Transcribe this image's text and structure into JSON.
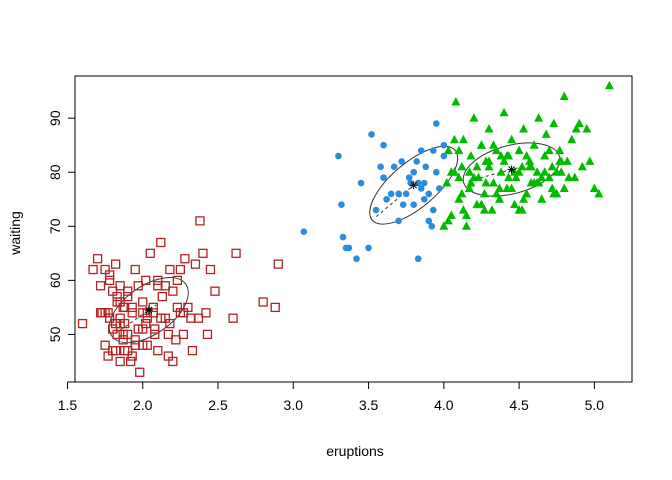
{
  "chart_data": {
    "type": "scatter",
    "xlabel": "eruptions",
    "ylabel": "waiting",
    "xlim": [
      1.55,
      5.25
    ],
    "ylim": [
      41.2,
      97.8
    ],
    "xticks": [
      1.5,
      2.0,
      2.5,
      3.0,
      3.5,
      4.0,
      4.5,
      5.0
    ],
    "xtick_labels": [
      "1.5",
      "2.0",
      "2.5",
      "3.0",
      "3.5",
      "4.0",
      "4.5",
      "5.0"
    ],
    "yticks": [
      50,
      60,
      70,
      80,
      90
    ],
    "ytick_labels": [
      "50",
      "60",
      "70",
      "80",
      "90"
    ],
    "grid": false,
    "series": [
      {
        "marker": "open-square",
        "color": "#b22222",
        "x": [
          1.6,
          1.7,
          1.72,
          1.73,
          1.75,
          1.75,
          1.77,
          1.78,
          1.78,
          1.8,
          1.8,
          1.82,
          1.82,
          1.83,
          1.83,
          1.85,
          1.85,
          1.85,
          1.87,
          1.87,
          1.88,
          1.88,
          1.9,
          1.9,
          1.92,
          1.93,
          1.95,
          1.95,
          1.97,
          1.98,
          2.0,
          2.0,
          2.02,
          2.03,
          2.03,
          2.05,
          2.07,
          2.08,
          2.1,
          2.1,
          2.12,
          2.13,
          2.15,
          2.17,
          2.18,
          2.2,
          2.2,
          2.22,
          2.23,
          2.25,
          2.27,
          2.28,
          2.3,
          2.33,
          2.35,
          2.37,
          2.38,
          2.4,
          2.42,
          2.43,
          2.45,
          2.48,
          2.6,
          2.62,
          2.8,
          2.88,
          2.9,
          1.67,
          1.72,
          1.77,
          1.8,
          1.83,
          1.85,
          1.87,
          1.9,
          1.93,
          1.97,
          2.0,
          2.03,
          2.07,
          2.12,
          2.15,
          2.18,
          2.23,
          2.27,
          2.32,
          1.75,
          1.82,
          1.88,
          1.95,
          2.02,
          2.08,
          2.17,
          2.25,
          1.78,
          1.85,
          1.9,
          1.93,
          2.0,
          2.1
        ],
        "y": [
          52,
          64,
          59,
          54,
          62,
          48,
          46,
          53,
          60,
          58,
          51,
          63,
          47,
          56,
          50,
          45,
          59,
          53,
          49,
          55,
          52,
          47,
          57,
          50,
          45,
          54,
          49,
          62,
          59,
          43,
          56,
          51,
          60,
          53,
          48,
          65,
          55,
          50,
          60,
          47,
          67,
          57,
          53,
          46,
          62,
          45,
          58,
          49,
          60,
          54,
          50,
          64,
          55,
          47,
          63,
          53,
          71,
          65,
          54,
          50,
          62,
          58,
          53,
          65,
          56,
          55,
          63,
          62,
          54,
          54,
          47,
          57,
          52,
          50,
          58,
          55,
          51,
          48,
          54,
          54,
          53,
          59,
          52,
          55,
          54,
          53,
          54,
          52,
          55,
          48,
          52,
          51,
          50,
          62,
          61,
          56,
          47,
          46,
          54,
          59
        ]
      },
      {
        "marker": "filled-circle",
        "color": "#2b8cdd",
        "x": [
          3.07,
          3.3,
          3.32,
          3.33,
          3.35,
          3.37,
          3.42,
          3.45,
          3.5,
          3.52,
          3.55,
          3.58,
          3.6,
          3.6,
          3.62,
          3.65,
          3.67,
          3.7,
          3.72,
          3.73,
          3.75,
          3.77,
          3.78,
          3.8,
          3.82,
          3.83,
          3.83,
          3.85,
          3.85,
          3.87,
          3.88,
          3.9,
          3.9,
          3.92,
          3.93,
          3.95,
          3.95,
          3.97,
          4.0,
          4.0,
          3.7,
          3.8,
          3.87,
          3.93
        ],
        "y": [
          69,
          83,
          74,
          68,
          66,
          66,
          64,
          78,
          66,
          87,
          73,
          81,
          85,
          79,
          75,
          76,
          81,
          71,
          82,
          74,
          76,
          79,
          78,
          74,
          82,
          64,
          78,
          84,
          77,
          75,
          81,
          71,
          76,
          70,
          84,
          80,
          89,
          77,
          85,
          83,
          76,
          80,
          78,
          73
        ]
      },
      {
        "marker": "filled-triangle",
        "color": "#00bb00",
        "x": [
          4.0,
          4.02,
          4.03,
          4.05,
          4.07,
          4.08,
          4.1,
          4.12,
          4.13,
          4.15,
          4.17,
          4.18,
          4.2,
          4.22,
          4.23,
          4.25,
          4.27,
          4.28,
          4.3,
          4.32,
          4.33,
          4.35,
          4.37,
          4.38,
          4.4,
          4.42,
          4.43,
          4.45,
          4.47,
          4.48,
          4.5,
          4.52,
          4.53,
          4.55,
          4.57,
          4.58,
          4.6,
          4.62,
          4.63,
          4.65,
          4.67,
          4.68,
          4.7,
          4.72,
          4.73,
          4.75,
          4.77,
          4.78,
          4.8,
          4.82,
          4.85,
          4.87,
          4.9,
          4.92,
          4.95,
          5.0,
          5.03,
          5.1,
          4.05,
          4.12,
          4.18,
          4.25,
          4.3,
          4.37,
          4.43,
          4.5,
          4.55,
          4.62,
          4.67,
          4.73,
          4.78,
          4.83,
          4.1,
          4.15,
          4.22,
          4.28,
          4.35,
          4.42,
          4.47,
          4.53,
          4.58,
          4.65,
          4.72,
          4.77,
          4.07,
          4.2,
          4.33,
          4.45,
          4.57,
          4.7,
          4.03,
          4.17,
          4.27,
          4.4,
          4.52,
          4.63,
          4.75,
          4.88,
          4.97,
          4.1,
          4.25,
          4.38,
          4.5,
          4.6,
          4.8,
          4.13,
          4.3
        ],
        "y": [
          70,
          78,
          84,
          72,
          80,
          93,
          75,
          81,
          86,
          70,
          77,
          83,
          90,
          74,
          79,
          85,
          76,
          82,
          88,
          73,
          78,
          84,
          75,
          80,
          91,
          77,
          83,
          86,
          74,
          79,
          84,
          81,
          88,
          76,
          82,
          78,
          85,
          80,
          90,
          75,
          83,
          87,
          79,
          81,
          89,
          76,
          84,
          80,
          94,
          82,
          86,
          79,
          89,
          81,
          88,
          77,
          76,
          96,
          80,
          76,
          78,
          74,
          82,
          77,
          79,
          73,
          83,
          78,
          80,
          76,
          82,
          79,
          84,
          72,
          81,
          78,
          76,
          83,
          80,
          75,
          81,
          79,
          77,
          82,
          86,
          79,
          85,
          77,
          81,
          84,
          71,
          80,
          73,
          82,
          73,
          78,
          80,
          88,
          82,
          79,
          85,
          83,
          80,
          78,
          77,
          73,
          81
        ]
      }
    ],
    "ellipses": [
      {
        "cx": 2.04,
        "cy": 54.5,
        "rx_dir": [
          1.0,
          30.0
        ],
        "a": 0.3,
        "b": 0.16,
        "angle_deg": 35
      },
      {
        "cx": 3.8,
        "cy": 77.6,
        "a": 0.36,
        "b": 0.15,
        "angle_deg": 40
      },
      {
        "cx": 4.45,
        "cy": 80.5,
        "a": 0.33,
        "b": 0.16,
        "angle_deg": 15
      }
    ],
    "centers": [
      {
        "x": 2.04,
        "y": 54.5
      },
      {
        "x": 3.8,
        "y": 77.6
      },
      {
        "x": 4.45,
        "y": 80.5
      }
    ]
  }
}
